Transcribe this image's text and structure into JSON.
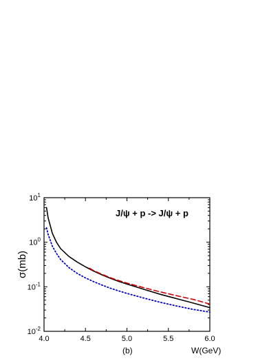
{
  "chart_data": {
    "type": "line",
    "title": "",
    "annotation": "J/ψ + p -> J/ψ  + p",
    "panel_label": "(b)",
    "xlabel": "W(GeV)",
    "ylabel": "σ(mb)",
    "x_scale": "linear",
    "y_scale": "log",
    "xlim": [
      4.0,
      6.0
    ],
    "ylim": [
      0.01,
      10
    ],
    "x_ticks": [
      4.0,
      4.5,
      5.0,
      5.5,
      6.0
    ],
    "x_tick_labels": [
      "4.0",
      "4.5",
      "5.0",
      "5.5",
      "6.0"
    ],
    "y_ticks": [
      {
        "value": 0.01,
        "base": "10",
        "exp": "-2"
      },
      {
        "value": 0.1,
        "base": "10",
        "exp": "-1"
      },
      {
        "value": 1,
        "base": "10",
        "exp": "0"
      },
      {
        "value": 10,
        "base": "10",
        "exp": "1"
      }
    ],
    "grid": false,
    "series": [
      {
        "style": "solid",
        "color": "#000000",
        "x": [
          4.03,
          4.05,
          4.08,
          4.1,
          4.15,
          4.2,
          4.3,
          4.4,
          4.5,
          4.6,
          4.7,
          4.8,
          4.9,
          5.0,
          5.2,
          5.4,
          5.6,
          5.8,
          6.0
        ],
        "y": [
          6.0,
          3.5,
          2.2,
          1.6,
          1.0,
          0.72,
          0.48,
          0.36,
          0.28,
          0.225,
          0.185,
          0.155,
          0.132,
          0.115,
          0.088,
          0.068,
          0.054,
          0.043,
          0.034
        ]
      },
      {
        "style": "dashed",
        "color": "#cc0000",
        "x": [
          4.55,
          4.6,
          4.7,
          4.8,
          4.9,
          5.0,
          5.2,
          5.4,
          5.6,
          5.8,
          6.0
        ],
        "y": [
          0.26,
          0.23,
          0.19,
          0.16,
          0.138,
          0.121,
          0.096,
          0.077,
          0.063,
          0.052,
          0.041
        ]
      },
      {
        "style": "dotted",
        "color": "#0000cc",
        "x": [
          4.03,
          4.05,
          4.08,
          4.1,
          4.15,
          4.2,
          4.3,
          4.4,
          4.5,
          4.6,
          4.7,
          4.8,
          4.9,
          5.0,
          5.2,
          5.4,
          5.6,
          5.8,
          6.0
        ],
        "y": [
          2.1,
          1.5,
          1.05,
          0.82,
          0.56,
          0.41,
          0.27,
          0.2,
          0.158,
          0.13,
          0.109,
          0.093,
          0.081,
          0.071,
          0.056,
          0.045,
          0.037,
          0.031,
          0.027
        ]
      }
    ]
  }
}
